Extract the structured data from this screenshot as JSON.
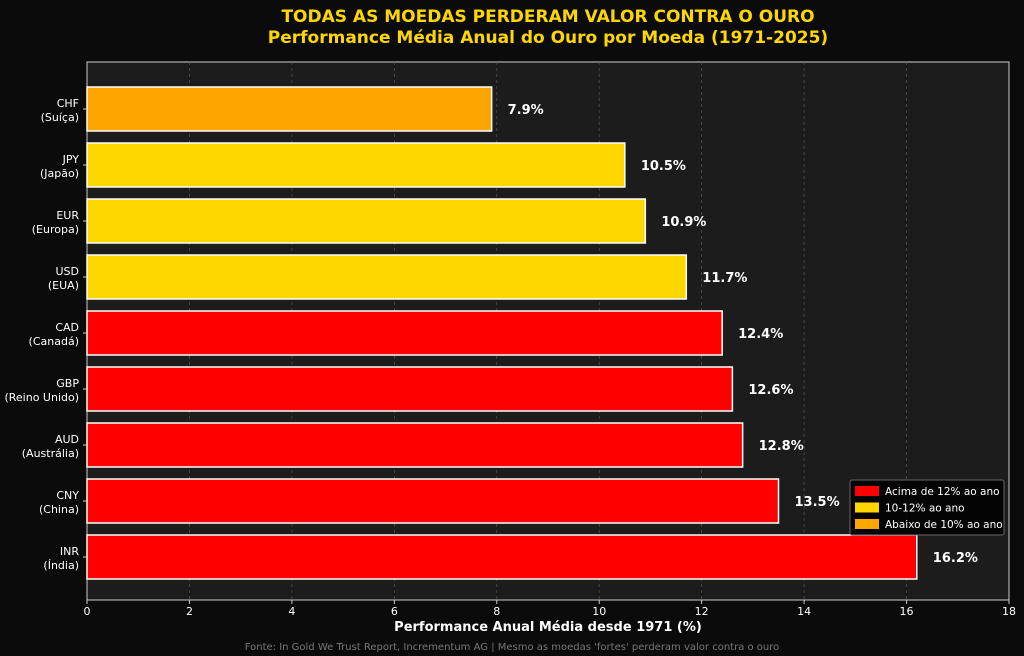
{
  "chart_data": {
    "type": "bar",
    "orientation": "horizontal",
    "title": "TODAS AS MOEDAS PERDERAM VALOR CONTRA O OURO",
    "subtitle": "Performance Média Anual do Ouro por Moeda (1971-2025)",
    "xlabel": "Performance Anual Média desde 1971 (%)",
    "ylabel": "",
    "xlim": [
      0,
      18
    ],
    "xticks": [
      "0",
      "2",
      "4",
      "6",
      "8",
      "10",
      "12",
      "14",
      "16",
      "18"
    ],
    "grid": true,
    "categories": [
      {
        "code": "CHF",
        "name": "(Suíça)"
      },
      {
        "code": "JPY",
        "name": "(Japão)"
      },
      {
        "code": "EUR",
        "name": "(Europa)"
      },
      {
        "code": "USD",
        "name": "(EUA)"
      },
      {
        "code": "CAD",
        "name": "(Canadá)"
      },
      {
        "code": "GBP",
        "name": "(Reino Unido)"
      },
      {
        "code": "AUD",
        "name": "(Austrália)"
      },
      {
        "code": "CNY",
        "name": "(China)"
      },
      {
        "code": "INR",
        "name": "(Índia)"
      }
    ],
    "values": [
      7.9,
      10.5,
      10.9,
      11.7,
      12.4,
      12.6,
      12.8,
      13.5,
      16.2
    ],
    "value_labels": [
      "7.9%",
      "10.5%",
      "10.9%",
      "11.7%",
      "12.4%",
      "12.6%",
      "12.8%",
      "13.5%",
      "16.2%"
    ],
    "legend": {
      "placement": "bottom-right",
      "entries": [
        {
          "label": "Acima de 12% ao ano",
          "color": "#ff0000"
        },
        {
          "label": "10-12% ao ano",
          "color": "#ffd700"
        },
        {
          "label": "Abaixo de 10% ao ano",
          "color": "#ffa500"
        }
      ]
    },
    "source": "Fonte: In Gold We Trust Report, Incrementum AG | Mesmo as moedas 'fortes' perderam valor contra o ouro"
  }
}
